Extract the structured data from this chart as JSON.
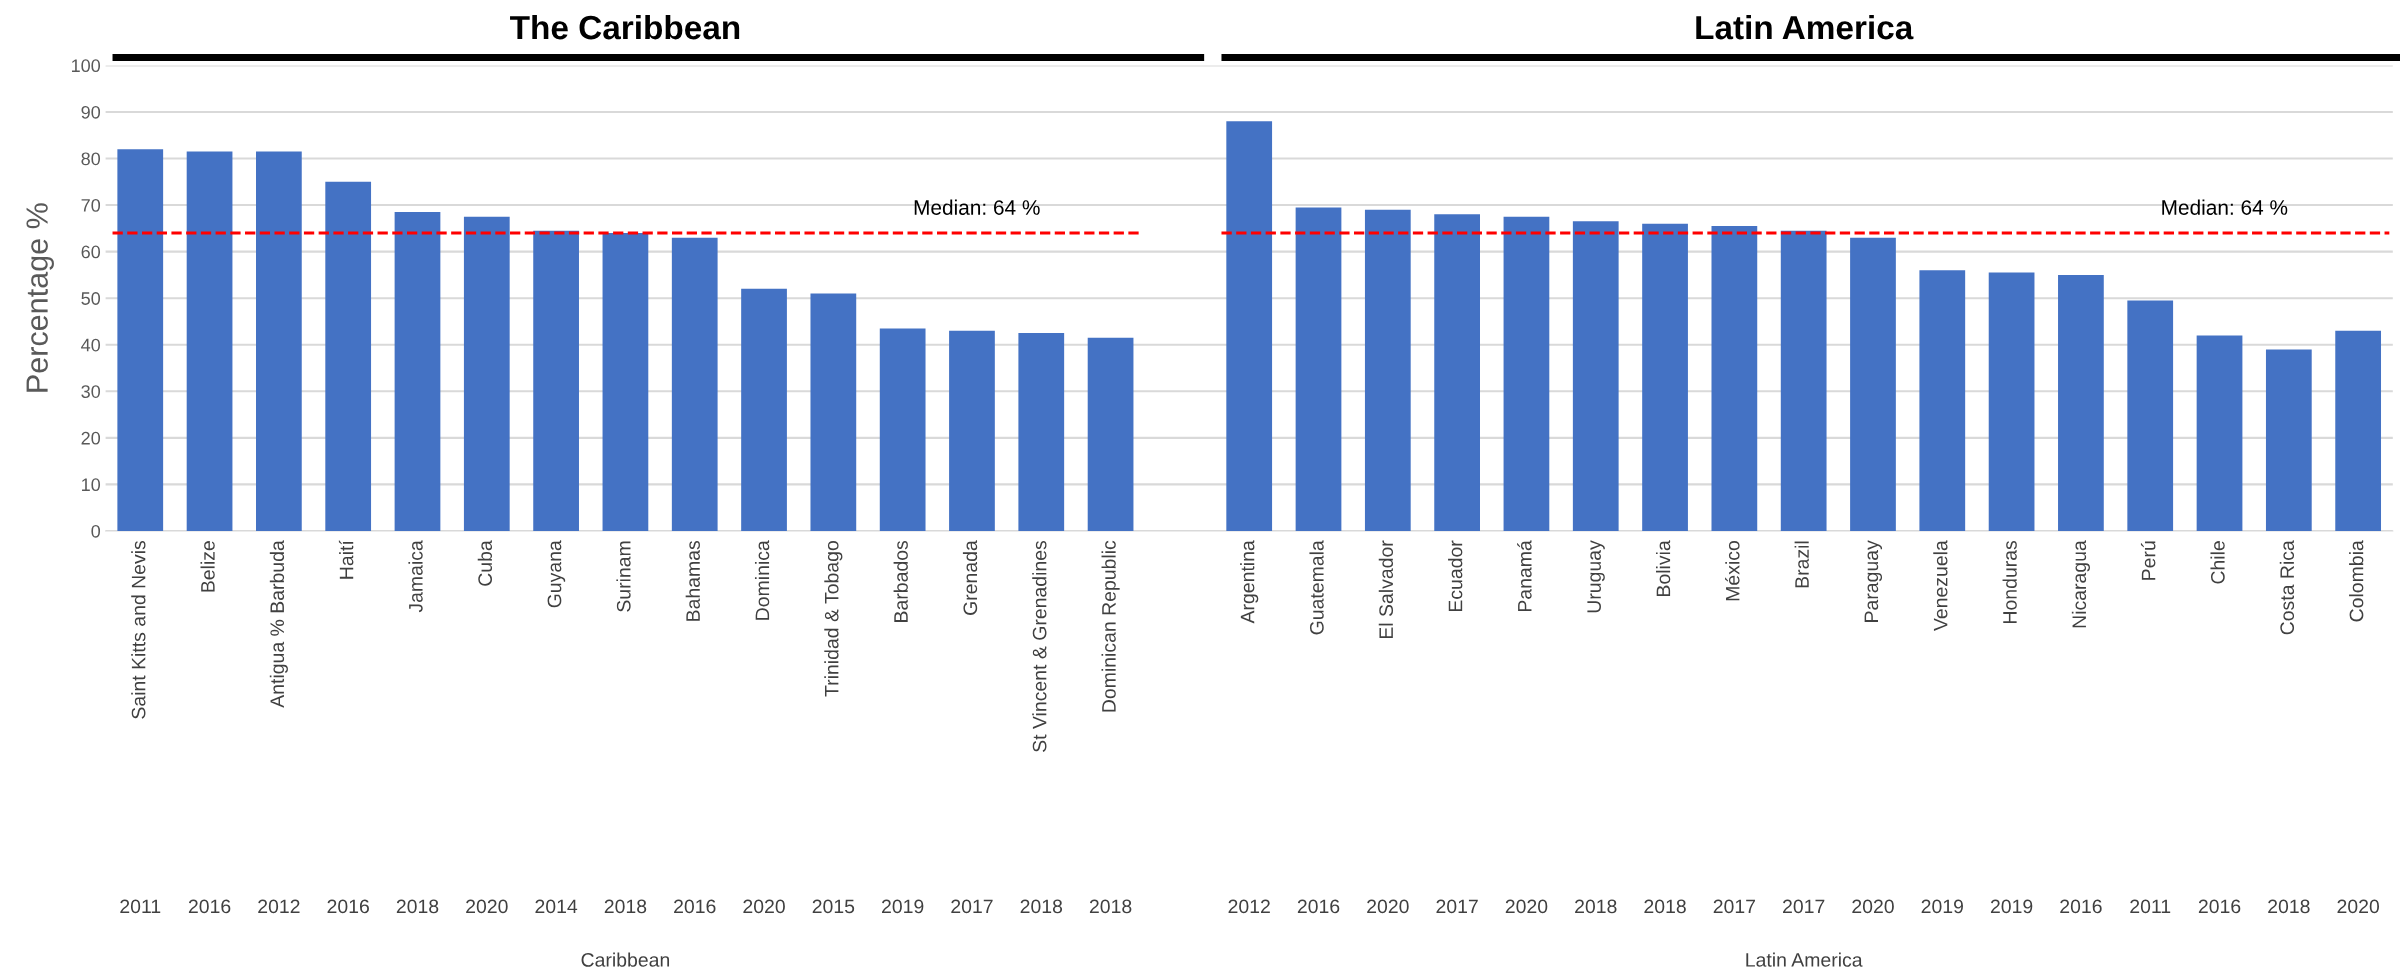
{
  "chart_data": {
    "type": "bar",
    "categories": [
      "Saint Kitts and Nevis",
      "Belize",
      "Antigua % Barbuda",
      "Haití",
      "Jamaica",
      "Cuba",
      "Guyana",
      "Surinam",
      "Bahamas",
      "Dominica",
      "Trinidad & Tobago",
      "Barbados",
      "Grenada",
      "St Vincent & Grenadines",
      "Dominican Republic",
      null,
      "Argentina",
      "Guatemala",
      "El Salvador",
      "Ecuador",
      "Panamá",
      "Uruguay",
      "Bolivia",
      "México",
      "Brazil",
      "Paraguay",
      "Venezuela",
      "Honduras",
      "Nicaragua",
      "Perú",
      "Chile",
      "Costa Rica",
      "Colombia"
    ],
    "values": [
      82,
      81.5,
      81.5,
      75,
      68.5,
      67.5,
      64.5,
      64,
      63,
      52,
      51,
      43.5,
      43,
      42.5,
      41.5,
      null,
      88,
      69.5,
      69,
      68,
      67.5,
      66.5,
      66,
      65.5,
      64.5,
      63,
      56,
      55.5,
      55,
      49.5,
      42,
      39,
      43
    ],
    "color": "#4472c4",
    "ylabel": "Percentage %",
    "ylim": [
      0,
      100
    ],
    "yticks": [
      0,
      10,
      20,
      30,
      40,
      50,
      60,
      70,
      80,
      90,
      100
    ],
    "grid": "y",
    "ref_lines": [
      {
        "axis": "y",
        "value": 64,
        "label": "Median: 64 %",
        "color": "#ff0000",
        "line_style": "dashed"
      }
    ],
    "annotations": [
      "The Caribbean",
      "Latin America",
      "Caribbean",
      "Latin America",
      "Median: 64 %",
      "2011",
      "2016",
      "2012",
      "2016",
      "2018",
      "2020",
      "2014",
      "2018",
      "2016",
      "2020",
      "2015",
      "2019",
      "2017",
      "2018",
      "2018",
      "2012",
      "2016",
      "2020",
      "2017",
      "2020",
      "2018",
      "2018",
      "2017",
      "2017",
      "2020",
      "2019",
      "2019",
      "2016",
      "2011",
      "2016",
      "2018",
      "2020"
    ]
  }
}
